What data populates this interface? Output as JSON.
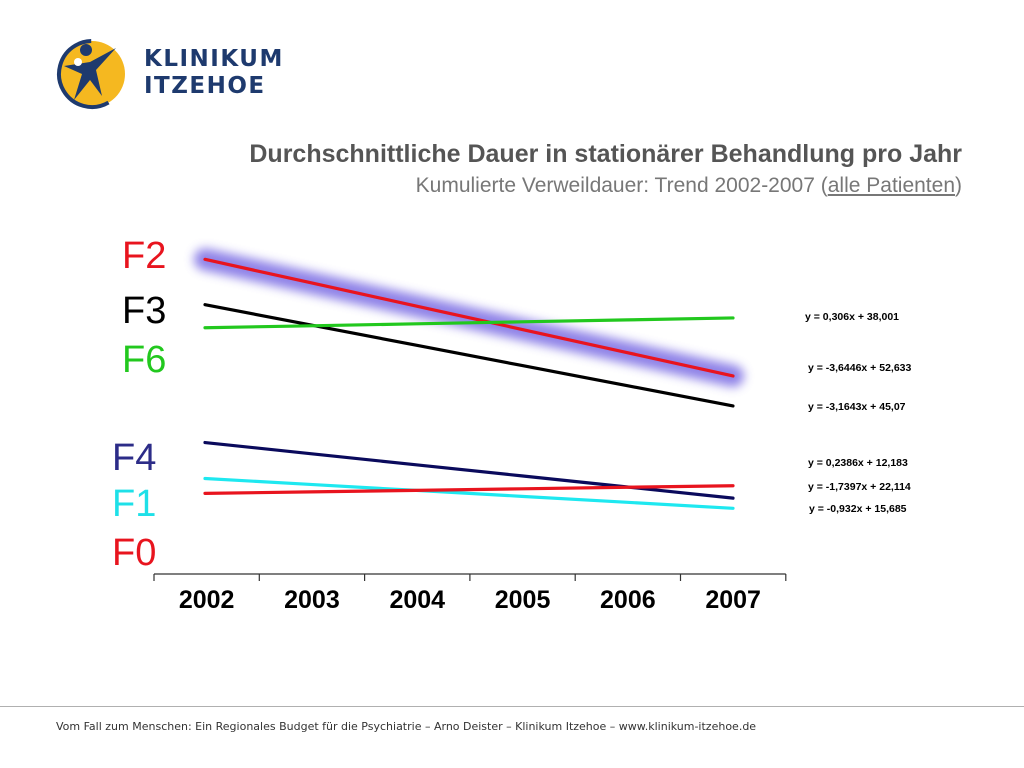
{
  "logo": {
    "line1": "KLINIKUM",
    "line2": "ITZEHOE"
  },
  "header": {
    "title": "Durchschnittliche Dauer in stationärer Behandlung pro Jahr",
    "subtitle_prefix": "Kumulierte Verweildauer: Trend 2002-2007 (",
    "subtitle_link": "alle Patienten",
    "subtitle_suffix": ")"
  },
  "chart_data": {
    "type": "line",
    "categories": [
      "2002",
      "2003",
      "2004",
      "2005",
      "2006",
      "2007"
    ],
    "x": [
      1,
      2,
      3,
      4,
      5,
      6
    ],
    "ylim": [
      0,
      60
    ],
    "grid": false,
    "group_labels": [
      {
        "text": "F2",
        "color": "#e8141e"
      },
      {
        "text": "F3",
        "color": "#000000"
      },
      {
        "text": "F6",
        "color": "#22c81e"
      },
      {
        "text": "F4",
        "color": "#2c2c88"
      },
      {
        "text": "F1",
        "color": "#1ee0e8"
      },
      {
        "text": "F0",
        "color": "#e8141e"
      }
    ],
    "series": [
      {
        "color": "#e8141e",
        "highlight": true,
        "equation": "y = -3,6446x + 52,633",
        "values": [
          48.99,
          45.34,
          41.7,
          38.05,
          34.41,
          30.77
        ]
      },
      {
        "color": "#000000",
        "equation": "y = -3,1643x + 45,07",
        "values": [
          41.91,
          38.74,
          35.58,
          32.41,
          29.25,
          26.08
        ]
      },
      {
        "color": "#22c81e",
        "equation": "y = 0,306x + 38,001",
        "values": [
          38.31,
          38.61,
          38.92,
          39.23,
          39.53,
          39.84
        ]
      },
      {
        "color": "#0a0a5c",
        "equation": "y = -1,7397x + 22,114",
        "values": [
          20.37,
          18.63,
          16.89,
          15.16,
          13.42,
          11.68
        ]
      },
      {
        "color": "#1ee8f0",
        "equation": "y = -0,932x + 15,685",
        "values": [
          14.75,
          13.82,
          12.89,
          11.96,
          11.03,
          10.09
        ]
      },
      {
        "color": "#e8141e",
        "equation": "y = 0,2386x + 12,183",
        "values": [
          12.42,
          12.66,
          12.9,
          13.14,
          13.38,
          13.62
        ]
      }
    ]
  },
  "footer": {
    "text": "Vom Fall zum Menschen: Ein Regionales Budget für die Psychiatrie  – Arno Deister – Klinikum Itzehoe – www.klinikum-itzehoe.de"
  }
}
